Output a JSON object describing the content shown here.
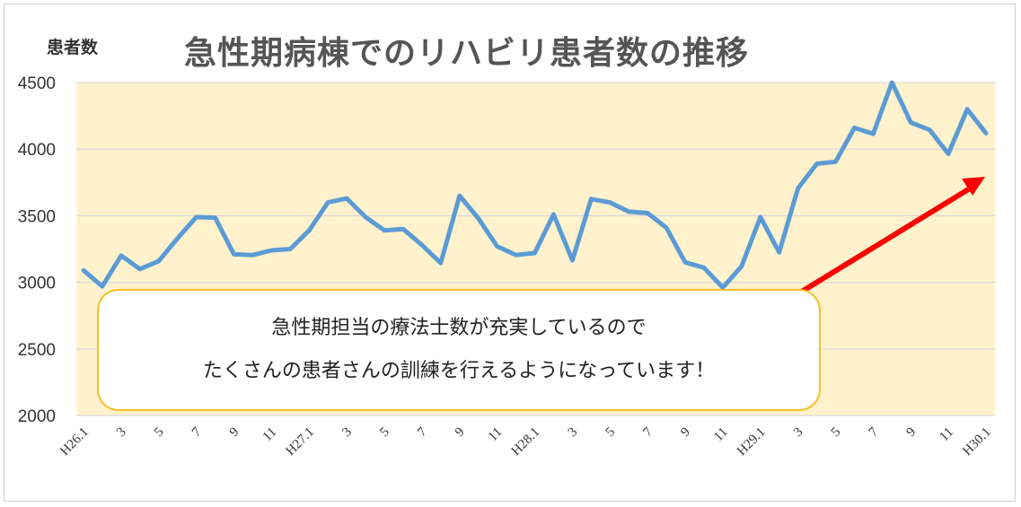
{
  "title": "急性期病棟でのリハビリ患者数の推移",
  "callout": {
    "line1": "急性期担当の療法士数が充実しているので",
    "line2": "たくさんの患者さんの訓練を行えるようになっています！"
  },
  "colors": {
    "line": "#5b9bd5",
    "plot_bg": "#fff2cc",
    "arrow": "#ff0000",
    "callout_border": "#f5c125",
    "grid": "#d9d9d9"
  },
  "chart_data": {
    "type": "line",
    "title": "急性期病棟でのリハビリ患者数の推移",
    "ylabel": "患者数",
    "xlabel": "",
    "ylim": [
      2000,
      4500
    ],
    "yticks": [
      2000,
      2500,
      3000,
      3500,
      4000,
      4500
    ],
    "x_tick_labels": [
      "H26.1",
      "3",
      "5",
      "7",
      "9",
      "11",
      "H27.1",
      "3",
      "5",
      "7",
      "9",
      "11",
      "H28.1",
      "3",
      "5",
      "7",
      "9",
      "11",
      "H29.1",
      "3",
      "5",
      "7",
      "9",
      "11",
      "H30.1"
    ],
    "grid": true,
    "legend": "none",
    "annotation": "upward trend arrow",
    "series": [
      {
        "values": [
          3090,
          2970,
          3200,
          3100,
          3160,
          3330,
          3490,
          3485,
          3210,
          3205,
          3240,
          3250,
          3390,
          3600,
          3630,
          3490,
          3390,
          3400,
          3280,
          3145,
          3650,
          3480,
          3270,
          3205,
          3220,
          3510,
          3165,
          3625,
          3600,
          3530,
          3520,
          3410,
          3150,
          3110,
          2960,
          3120,
          3490,
          3225,
          3705,
          3890,
          3905,
          4160,
          4115,
          4500,
          4200,
          4145,
          3965,
          4300,
          4120
        ]
      }
    ]
  }
}
